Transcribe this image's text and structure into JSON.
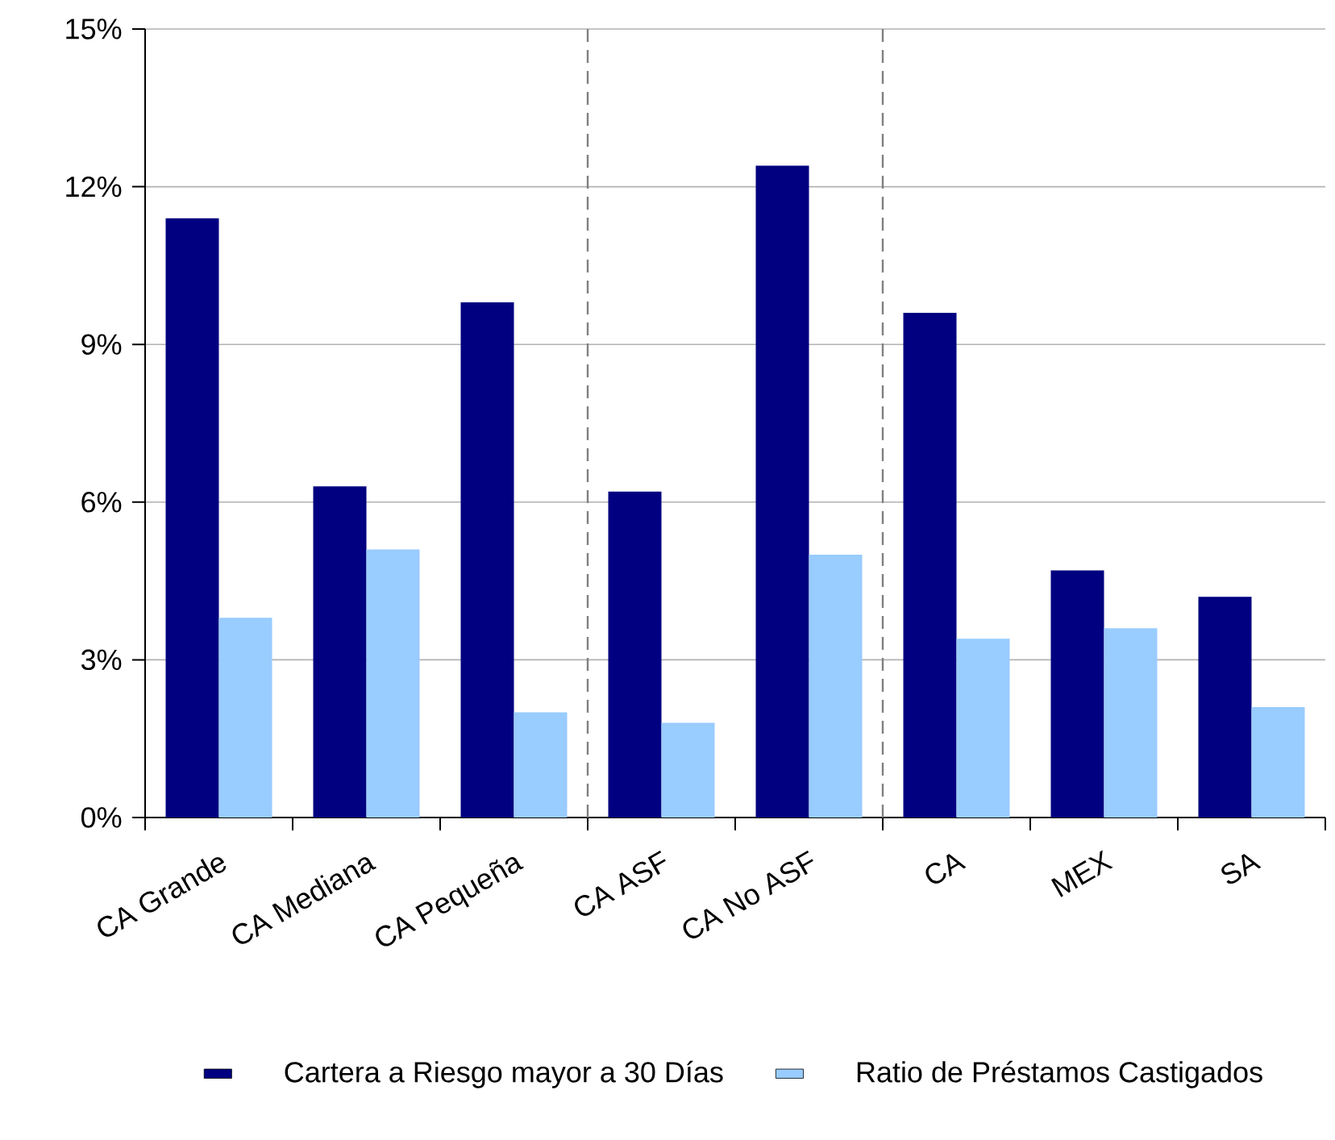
{
  "chart_data": {
    "type": "bar",
    "categories": [
      "CA Grande",
      "CA Mediana",
      "CA Pequeña",
      "CA ASF",
      "CA No ASF",
      "CA",
      "MEX",
      "SA"
    ],
    "series": [
      {
        "name": "Cartera a Riesgo mayor a 30 Días",
        "color": "#000080",
        "values": [
          11.4,
          6.3,
          9.8,
          6.2,
          12.4,
          9.6,
          4.7,
          4.2
        ]
      },
      {
        "name": "Ratio de Préstamos  Castigados",
        "color": "#99ccff",
        "values": [
          3.8,
          5.1,
          2.0,
          1.8,
          5.0,
          3.4,
          3.6,
          2.1
        ]
      }
    ],
    "ylim": [
      0,
      15
    ],
    "yticks": [
      {
        "value": 0,
        "label": "0%"
      },
      {
        "value": 3,
        "label": "3%"
      },
      {
        "value": 6,
        "label": "6%"
      },
      {
        "value": 9,
        "label": "9%"
      },
      {
        "value": 12,
        "label": "12%"
      },
      {
        "value": 15,
        "label": "15%"
      }
    ],
    "grid": "y",
    "legend": "bottom"
  }
}
